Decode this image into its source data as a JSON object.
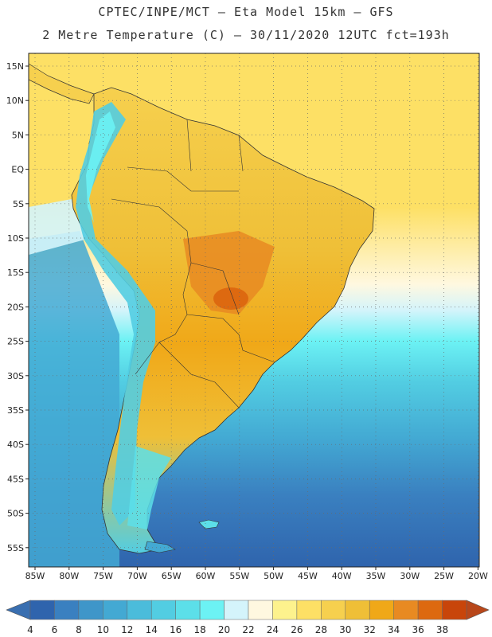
{
  "header": {
    "line1": "CPTEC/INPE/MCT –  Eta Model 15km – GFS",
    "line2": "2 Metre Temperature (C) – 30/11/2020 12UTC fct=193h"
  },
  "map": {
    "region": "South America",
    "lat_ticks": [
      "15N",
      "10N",
      "5N",
      "EQ",
      "5S",
      "10S",
      "15S",
      "20S",
      "25S",
      "30S",
      "35S",
      "40S",
      "45S",
      "50S",
      "55S"
    ],
    "lon_ticks": [
      "85W",
      "80W",
      "75W",
      "70W",
      "65W",
      "60W",
      "55W",
      "50W",
      "45W",
      "40W",
      "35W",
      "30W",
      "25W",
      "20W"
    ]
  },
  "colorbar": {
    "labels": [
      "4",
      "6",
      "8",
      "10",
      "12",
      "14",
      "16",
      "18",
      "20",
      "22",
      "24",
      "26",
      "28",
      "30",
      "32",
      "34",
      "36",
      "38"
    ],
    "below_color": "#3a6fb0",
    "above_color": "#b8471a",
    "colors": [
      "#2f64ad",
      "#3a80c0",
      "#3f96c9",
      "#43a9d3",
      "#4bbcdb",
      "#52cde2",
      "#5cdfe9",
      "#6cf2f4",
      "#d4f4fb",
      "#fff8e0",
      "#fdf28d",
      "#fde065",
      "#f6d04e",
      "#efbf37",
      "#f0a818",
      "#e88a22",
      "#dd6910",
      "#c8450a"
    ]
  }
}
